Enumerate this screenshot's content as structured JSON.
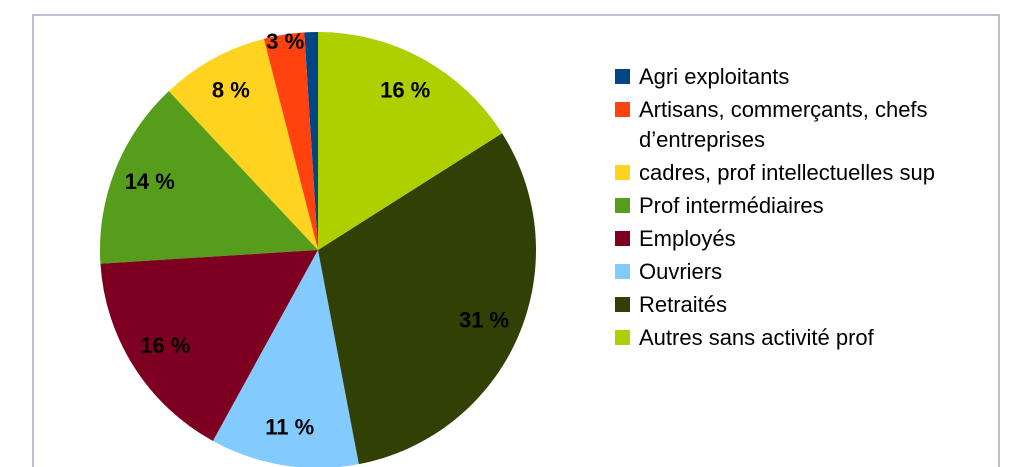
{
  "chart_data": {
    "type": "pie",
    "categories": [
      "Agri exploitants",
      "Artisans, commerçants, chefs d’entreprises",
      "cadres, prof intellectuelles sup",
      "Prof intermédiaires",
      "Employés",
      "Ouvriers",
      "Retraités",
      "Autres sans activité prof"
    ],
    "values": [
      1,
      3,
      8,
      14,
      16,
      11,
      31,
      16
    ],
    "value_labels": [
      null,
      "3 %",
      "8 %",
      "14 %",
      "16 %",
      "11 %",
      "31 %",
      "16 %"
    ],
    "colors": [
      "#004586",
      "#ff420e",
      "#ffd320",
      "#579d1c",
      "#7e0021",
      "#83caff",
      "#314004",
      "#aecf00"
    ],
    "legend": "right"
  }
}
